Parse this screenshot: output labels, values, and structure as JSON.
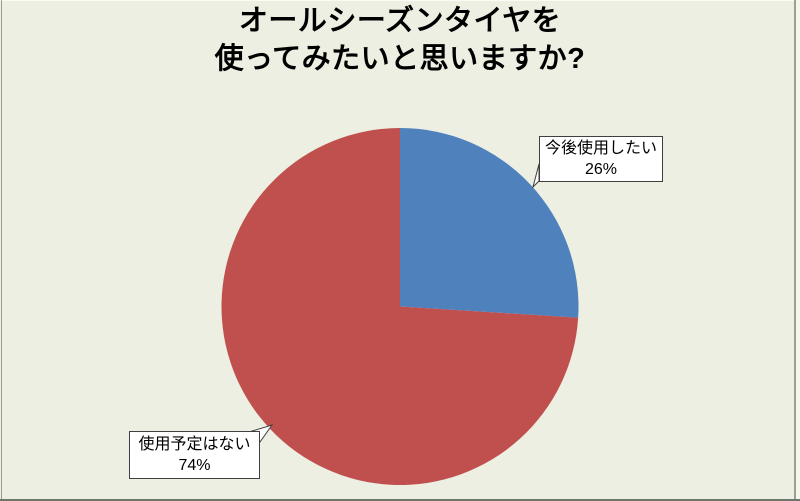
{
  "page": {
    "background_color": "#ecefe2"
  },
  "chart_data": {
    "type": "pie",
    "title": "オールシーズンタイヤを使ってみたいと思いますか?",
    "title_lines": [
      "オールシーズンタイヤを",
      "使ってみたいと思いますか?"
    ],
    "categories": [
      "今後使用したい",
      "使用予定はない"
    ],
    "values": [
      26,
      74
    ],
    "data_labels": [
      {
        "label": "今後使用したい",
        "percent": "26%"
      },
      {
        "label": "使用予定はない",
        "percent": "74%"
      }
    ],
    "colors": [
      "#4f81bd",
      "#c0504d"
    ],
    "start_angle": "12 o'clock",
    "direction": "clockwise",
    "legend": false,
    "label_style": "callout boxes with leader lines"
  }
}
